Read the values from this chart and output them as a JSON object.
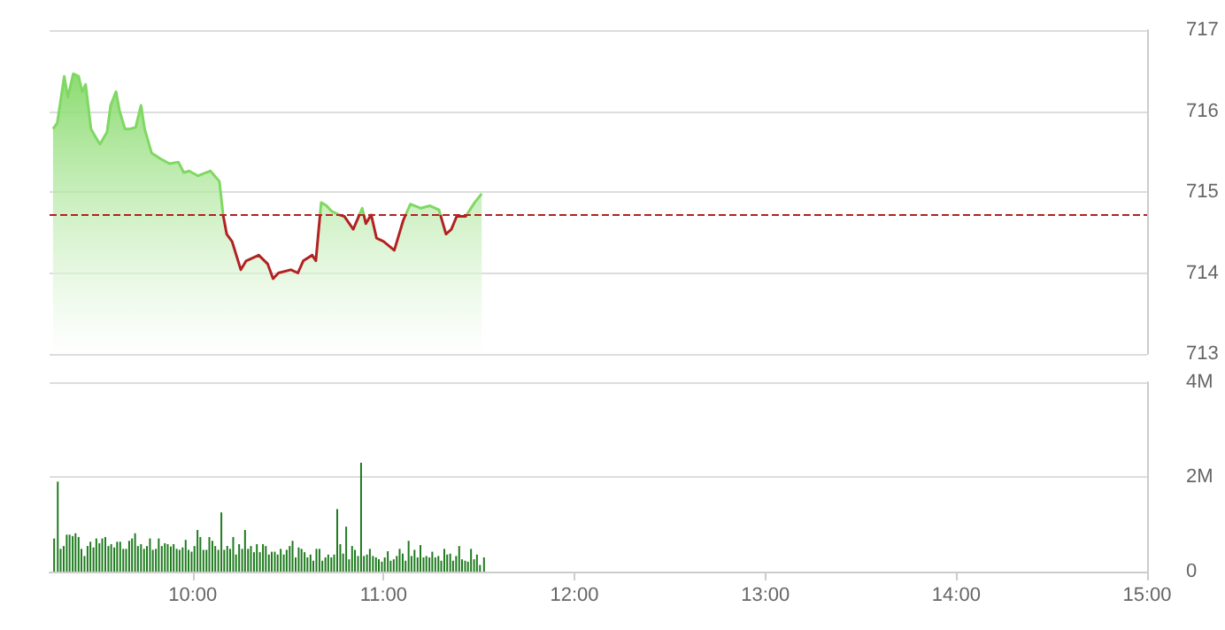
{
  "chart_data": [
    {
      "type": "area",
      "color": "#7fd862",
      "marker": "none",
      "tick_labels": "y",
      "grid": "y",
      "x": [
        9.268,
        9.29,
        9.327,
        9.346,
        9.374,
        9.402,
        9.421,
        9.439,
        9.467,
        9.486,
        9.514,
        9.551,
        9.57,
        9.598,
        9.617,
        9.645,
        9.673,
        9.701,
        9.729,
        9.748,
        9.785,
        9.832,
        9.879,
        9.925,
        9.953,
        9.981,
        10.028,
        10.093,
        10.14,
        10.159,
        10.178,
        10.206,
        10.252,
        10.28,
        10.346,
        10.393,
        10.421,
        10.449,
        10.514,
        10.551,
        10.579,
        10.626,
        10.645,
        10.673,
        10.701,
        10.729,
        10.766,
        10.794,
        10.841,
        10.888,
        10.907,
        10.935,
        10.963,
        11.0,
        11.056,
        11.103,
        11.14,
        11.196,
        11.243,
        11.29,
        11.327,
        11.355,
        11.383,
        11.43,
        11.477,
        11.514
      ],
      "values": [
        715.78,
        715.85,
        716.43,
        716.17,
        716.46,
        716.43,
        716.24,
        716.33,
        715.78,
        715.7,
        715.59,
        715.74,
        716.07,
        716.24,
        716.0,
        715.78,
        715.78,
        715.8,
        716.07,
        715.78,
        715.48,
        715.41,
        715.35,
        715.37,
        715.24,
        715.26,
        715.2,
        715.26,
        715.13,
        714.72,
        714.48,
        714.39,
        714.04,
        714.15,
        714.22,
        714.11,
        713.93,
        714.0,
        714.04,
        714.0,
        714.15,
        714.22,
        714.15,
        714.87,
        714.83,
        714.76,
        714.72,
        714.7,
        714.54,
        714.8,
        714.61,
        714.72,
        714.43,
        714.39,
        714.28,
        714.65,
        714.85,
        714.8,
        714.83,
        714.78,
        714.48,
        714.54,
        714.7,
        714.7,
        714.87,
        714.98
      ],
      "xlim": [
        9.25,
        15
      ],
      "ylim": [
        713,
        717
      ],
      "yticks": [
        713,
        714,
        715,
        716,
        717
      ],
      "ref_lines": [
        {
          "axis": "y",
          "value": 714.72,
          "color": "#b22222",
          "line_style": "dashed"
        }
      ]
    },
    {
      "type": "bar",
      "color": "#1e7b1e",
      "grid": "y",
      "x": [
        9.274,
        9.293,
        9.308,
        9.324,
        9.34,
        9.355,
        9.371,
        9.386,
        9.402,
        9.417,
        9.433,
        9.449,
        9.464,
        9.48,
        9.495,
        9.511,
        9.526,
        9.542,
        9.558,
        9.573,
        9.589,
        9.604,
        9.62,
        9.636,
        9.651,
        9.667,
        9.682,
        9.698,
        9.713,
        9.729,
        9.745,
        9.76,
        9.776,
        9.791,
        9.807,
        9.822,
        9.838,
        9.854,
        9.869,
        9.885,
        9.9,
        9.916,
        9.931,
        9.947,
        9.963,
        9.978,
        9.994,
        10.009,
        10.025,
        10.04,
        10.056,
        10.072,
        10.087,
        10.103,
        10.118,
        10.134,
        10.15,
        10.165,
        10.181,
        10.196,
        10.212,
        10.227,
        10.243,
        10.259,
        10.274,
        10.29,
        10.305,
        10.321,
        10.336,
        10.352,
        10.368,
        10.383,
        10.399,
        10.414,
        10.43,
        10.445,
        10.461,
        10.477,
        10.492,
        10.508,
        10.523,
        10.539,
        10.555,
        10.57,
        10.586,
        10.601,
        10.617,
        10.632,
        10.648,
        10.664,
        10.679,
        10.695,
        10.71,
        10.726,
        10.741,
        10.757,
        10.773,
        10.788,
        10.804,
        10.819,
        10.835,
        10.85,
        10.866,
        10.882,
        10.897,
        10.913,
        10.928,
        10.944,
        10.96,
        10.975,
        10.991,
        11.006,
        11.022,
        11.037,
        11.053,
        11.069,
        11.084,
        11.1,
        11.115,
        11.131,
        11.146,
        11.162,
        11.178,
        11.193,
        11.209,
        11.224,
        11.24,
        11.255,
        11.271,
        11.287,
        11.302,
        11.318,
        11.333,
        11.349,
        11.364,
        11.38,
        11.396,
        11.411,
        11.427,
        11.442,
        11.458,
        11.474,
        11.489,
        11.505,
        11.526
      ],
      "values": [
        0.7,
        1.9,
        0.48,
        0.54,
        0.78,
        0.78,
        0.75,
        0.81,
        0.73,
        0.48,
        0.33,
        0.54,
        0.63,
        0.51,
        0.7,
        0.6,
        0.7,
        0.73,
        0.54,
        0.58,
        0.51,
        0.63,
        0.63,
        0.48,
        0.48,
        0.65,
        0.7,
        0.81,
        0.54,
        0.58,
        0.48,
        0.54,
        0.7,
        0.46,
        0.48,
        0.7,
        0.54,
        0.6,
        0.58,
        0.53,
        0.58,
        0.48,
        0.46,
        0.51,
        0.67,
        0.46,
        0.42,
        0.54,
        0.88,
        0.73,
        0.46,
        0.46,
        0.73,
        0.65,
        0.54,
        0.46,
        1.25,
        0.46,
        0.54,
        0.48,
        0.73,
        0.36,
        0.58,
        0.48,
        0.88,
        0.48,
        0.54,
        0.41,
        0.58,
        0.41,
        0.58,
        0.54,
        0.36,
        0.42,
        0.42,
        0.36,
        0.48,
        0.36,
        0.46,
        0.54,
        0.65,
        0.3,
        0.51,
        0.48,
        0.41,
        0.3,
        0.36,
        0.23,
        0.48,
        0.48,
        0.23,
        0.3,
        0.36,
        0.3,
        0.36,
        1.32,
        0.58,
        0.38,
        0.95,
        0.26,
        0.54,
        0.46,
        0.33,
        2.3,
        0.33,
        0.36,
        0.48,
        0.33,
        0.3,
        0.26,
        0.21,
        0.3,
        0.43,
        0.23,
        0.26,
        0.33,
        0.48,
        0.38,
        0.23,
        0.65,
        0.33,
        0.46,
        0.3,
        0.56,
        0.3,
        0.33,
        0.3,
        0.42,
        0.3,
        0.33,
        0.23,
        0.48,
        0.36,
        0.38,
        0.23,
        0.33,
        0.54,
        0.26,
        0.23,
        0.21,
        0.48,
        0.26,
        0.36,
        0.14,
        0.3
      ],
      "xlim": [
        9.25,
        15
      ],
      "xticks": [
        {
          "value": 10,
          "label": "10:00"
        },
        {
          "value": 11,
          "label": "11:00"
        },
        {
          "value": 12,
          "label": "12:00"
        },
        {
          "value": 13,
          "label": "13:00"
        },
        {
          "value": 14,
          "label": "14:00"
        },
        {
          "value": 15,
          "label": "15:00"
        }
      ],
      "ylim": [
        0,
        4
      ],
      "yticks": [
        0,
        {
          "value": 2,
          "label": "2M"
        },
        {
          "value": 4,
          "label": "4M"
        }
      ]
    }
  ]
}
